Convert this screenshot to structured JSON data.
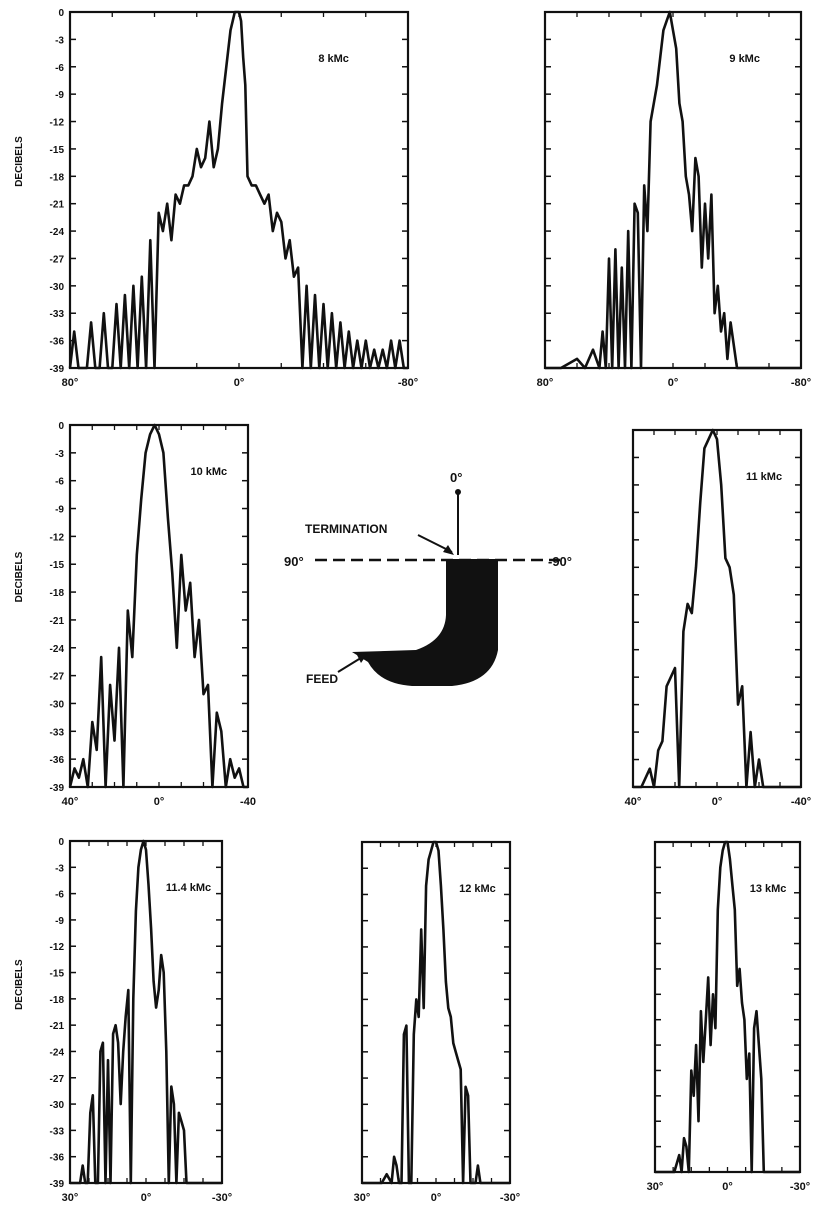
{
  "ytick_labels": [
    "0",
    "-3",
    "-6",
    "-9",
    "-12",
    "-15",
    "-18",
    "-21",
    "-24",
    "-27",
    "-30",
    "-33",
    "-36",
    "-39"
  ],
  "diagram": {
    "angle_top": "0°",
    "angle_left": "90°",
    "angle_right": "-90°",
    "termination_label": "TERMINATION",
    "feed_label": "FEED"
  },
  "chart_data": [
    {
      "type": "line",
      "title": "8 kMc",
      "ylabel": "DECIBELS",
      "xlim": [
        80,
        -80
      ],
      "ylim": [
        -39,
        0
      ],
      "xticks": [
        "80°",
        "0°",
        "-80°"
      ],
      "x": [
        80,
        78,
        76,
        74,
        72,
        70,
        68,
        66,
        64,
        62,
        60,
        58,
        56,
        54,
        52,
        50,
        48,
        46,
        44,
        42,
        40,
        38,
        36,
        34,
        32,
        30,
        28,
        26,
        24,
        22,
        20,
        18,
        16,
        14,
        12,
        10,
        8,
        6,
        4,
        3,
        2,
        1,
        0,
        -1,
        -2,
        -3,
        -4,
        -6,
        -8,
        -10,
        -12,
        -14,
        -16,
        -18,
        -20,
        -22,
        -24,
        -26,
        -28,
        -30,
        -32,
        -34,
        -36,
        -38,
        -40,
        -42,
        -44,
        -46,
        -48,
        -50,
        -52,
        -54,
        -56,
        -58,
        -60,
        -62,
        -64,
        -66,
        -68,
        -70,
        -72,
        -74,
        -76,
        -78,
        -80
      ],
      "values": [
        -39,
        -35,
        -39,
        -39,
        -39,
        -34,
        -39,
        -39,
        -33,
        -39,
        -39,
        -32,
        -39,
        -31,
        -39,
        -30,
        -39,
        -29,
        -39,
        -25,
        -39,
        -22,
        -24,
        -21,
        -25,
        -20,
        -21,
        -19,
        -19,
        -18,
        -15,
        -17,
        -16,
        -12,
        -17,
        -15,
        -10,
        -6,
        -2,
        -1,
        0,
        0,
        0,
        -1,
        -5,
        -8,
        -18,
        -19,
        -19,
        -20,
        -21,
        -20,
        -24,
        -22,
        -23,
        -27,
        -25,
        -29,
        -28,
        -39,
        -30,
        -39,
        -31,
        -39,
        -32,
        -39,
        -33,
        -39,
        -34,
        -39,
        -35,
        -39,
        -36,
        -39,
        -36,
        -39,
        -37,
        -39,
        -37,
        -39,
        -36,
        -39,
        -36,
        -39,
        -39
      ]
    },
    {
      "type": "line",
      "title": "9 kMc",
      "ylabel": "",
      "xlim": [
        80,
        -80
      ],
      "ylim": [
        -39,
        0
      ],
      "xticks": [
        "80°",
        "0°",
        "-80°"
      ],
      "x": [
        80,
        70,
        60,
        55,
        50,
        46,
        44,
        42,
        40,
        38,
        36,
        34,
        32,
        30,
        28,
        26,
        24,
        22,
        20,
        18,
        16,
        14,
        12,
        10,
        8,
        6,
        4,
        2,
        0,
        -2,
        -4,
        -6,
        -8,
        -10,
        -12,
        -14,
        -16,
        -18,
        -20,
        -22,
        -24,
        -26,
        -28,
        -30,
        -32,
        -34,
        -36,
        -40,
        -50,
        -60,
        -70,
        -80
      ],
      "values": [
        -39,
        -39,
        -38,
        -39,
        -37,
        -39,
        -35,
        -39,
        -27,
        -39,
        -26,
        -39,
        -28,
        -39,
        -24,
        -39,
        -21,
        -22,
        -39,
        -19,
        -24,
        -12,
        -10,
        -8,
        -5,
        -2,
        -1,
        0,
        -2,
        -4,
        -10,
        -12,
        -18,
        -20,
        -24,
        -16,
        -18,
        -28,
        -21,
        -27,
        -20,
        -33,
        -30,
        -35,
        -33,
        -38,
        -34,
        -39,
        -39,
        -39,
        -39,
        -39
      ]
    },
    {
      "type": "line",
      "title": "10 kMc",
      "ylabel": "DECIBELS",
      "xlim": [
        40,
        -40
      ],
      "ylim": [
        -39,
        0
      ],
      "xticks": [
        "40°",
        "0°",
        "-40"
      ],
      "x": [
        40,
        38,
        36,
        34,
        32,
        30,
        28,
        26,
        24,
        22,
        20,
        18,
        16,
        14,
        12,
        10,
        8,
        6,
        4,
        2,
        0,
        -2,
        -4,
        -6,
        -8,
        -10,
        -12,
        -14,
        -16,
        -18,
        -20,
        -22,
        -24,
        -26,
        -28,
        -30,
        -32,
        -34,
        -36,
        -38,
        -40
      ],
      "values": [
        -39,
        -37,
        -38,
        -36,
        -39,
        -32,
        -35,
        -25,
        -39,
        -28,
        -34,
        -24,
        -39,
        -20,
        -25,
        -14,
        -8,
        -3,
        -1,
        0,
        -1,
        -3,
        -10,
        -16,
        -24,
        -14,
        -20,
        -17,
        -25,
        -21,
        -29,
        -28,
        -39,
        -31,
        -33,
        -39,
        -36,
        -38,
        -37,
        -39,
        -39
      ]
    },
    {
      "type": "line",
      "title": "11 kMc",
      "ylabel": "",
      "xlim": [
        40,
        -40
      ],
      "ylim": [
        -39,
        0
      ],
      "xticks": [
        "40°",
        "0°",
        "-40°"
      ],
      "x": [
        40,
        36,
        32,
        30,
        28,
        26,
        24,
        22,
        20,
        18,
        16,
        14,
        12,
        10,
        8,
        6,
        4,
        2,
        0,
        -2,
        -4,
        -6,
        -8,
        -10,
        -12,
        -14,
        -16,
        -18,
        -20,
        -22,
        -24,
        -26,
        -28,
        -30,
        -34,
        -40
      ],
      "values": [
        -39,
        -39,
        -37,
        -39,
        -35,
        -34,
        -28,
        -27,
        -26,
        -39,
        -22,
        -19,
        -20,
        -15,
        -8,
        -2,
        -1,
        0,
        -1,
        -6,
        -14,
        -15,
        -18,
        -30,
        -28,
        -39,
        -33,
        -39,
        -36,
        -39,
        -39,
        -39,
        -39,
        -39,
        -39,
        -39
      ]
    },
    {
      "type": "line",
      "title": "11.4 kMc",
      "ylabel": "DECIBELS",
      "xlim": [
        30,
        -30
      ],
      "ylim": [
        -39,
        0
      ],
      "xticks": [
        "30°",
        "0°",
        "-30°"
      ],
      "x": [
        30,
        28,
        26,
        25,
        24,
        23,
        22,
        21,
        20,
        19,
        18,
        17,
        16,
        15,
        14,
        13,
        12,
        11,
        10,
        9,
        8,
        7,
        6,
        5,
        4,
        3,
        2,
        1,
        0,
        -1,
        -2,
        -3,
        -4,
        -5,
        -6,
        -7,
        -8,
        -9,
        -10,
        -11,
        -12,
        -13,
        -14,
        -15,
        -16,
        -18,
        -20,
        -22,
        -24,
        -26,
        -28,
        -30
      ],
      "values": [
        -39,
        -39,
        -39,
        -37,
        -39,
        -39,
        -31,
        -29,
        -39,
        -39,
        -24,
        -23,
        -39,
        -25,
        -39,
        -22,
        -21,
        -23,
        -30,
        -24,
        -20,
        -17,
        -39,
        -18,
        -8,
        -3,
        -1,
        0,
        -1,
        -5,
        -10,
        -16,
        -19,
        -17,
        -13,
        -15,
        -24,
        -39,
        -28,
        -30,
        -39,
        -31,
        -32,
        -33,
        -39,
        -39,
        -39,
        -39,
        -39,
        -39,
        -39,
        -39
      ]
    },
    {
      "type": "line",
      "title": "12 kMc",
      "ylabel": "",
      "xlim": [
        30,
        -30
      ],
      "ylim": [
        -39,
        0
      ],
      "xticks": [
        "30°",
        "0°",
        "-30°"
      ],
      "x": [
        30,
        28,
        26,
        24,
        22,
        20,
        18,
        17,
        16,
        15,
        14,
        13,
        12,
        11,
        10,
        9,
        8,
        7,
        6,
        5,
        4,
        3,
        2,
        1,
        0,
        -1,
        -2,
        -3,
        -4,
        -5,
        -6,
        -7,
        -8,
        -9,
        -10,
        -11,
        -12,
        -13,
        -14,
        -15,
        -16,
        -17,
        -18,
        -20,
        -22,
        -24,
        -26,
        -28,
        -30
      ],
      "values": [
        -39,
        -39,
        -39,
        -39,
        -39,
        -38,
        -39,
        -36,
        -37,
        -39,
        -39,
        -22,
        -21,
        -39,
        -39,
        -22,
        -18,
        -20,
        -10,
        -19,
        -5,
        -2,
        -1,
        0,
        0,
        -1,
        -5,
        -10,
        -16,
        -19,
        -20,
        -23,
        -24,
        -25,
        -26,
        -39,
        -28,
        -29,
        -39,
        -39,
        -39,
        -37,
        -39,
        -39,
        -39,
        -39,
        -39,
        -39,
        -39
      ]
    },
    {
      "type": "line",
      "title": "13 kMc",
      "ylabel": "",
      "xlim": [
        30,
        -30
      ],
      "ylim": [
        -39,
        0
      ],
      "xticks": [
        "30°",
        "0°",
        "-30°"
      ],
      "x": [
        30,
        28,
        26,
        24,
        22,
        20,
        19,
        18,
        17,
        16,
        15,
        14,
        13,
        12,
        11,
        10,
        9,
        8,
        7,
        6,
        5,
        4,
        3,
        2,
        1,
        0,
        -1,
        -2,
        -3,
        -4,
        -5,
        -6,
        -7,
        -8,
        -9,
        -10,
        -11,
        -12,
        -13,
        -14,
        -15,
        -16,
        -18,
        -20,
        -22,
        -24,
        -26,
        -28,
        -30
      ],
      "values": [
        -39,
        -39,
        -39,
        -39,
        -39,
        -37,
        -39,
        -35,
        -36,
        -39,
        -27,
        -30,
        -24,
        -33,
        -20,
        -26,
        -21,
        -16,
        -24,
        -18,
        -22,
        -8,
        -3,
        -1,
        0,
        0,
        -2,
        -5,
        -8,
        -17,
        -15,
        -19,
        -21,
        -28,
        -25,
        -39,
        -22,
        -20,
        -24,
        -28,
        -39,
        -39,
        -39,
        -39,
        -39,
        -39,
        -39,
        -39,
        -39
      ]
    }
  ]
}
